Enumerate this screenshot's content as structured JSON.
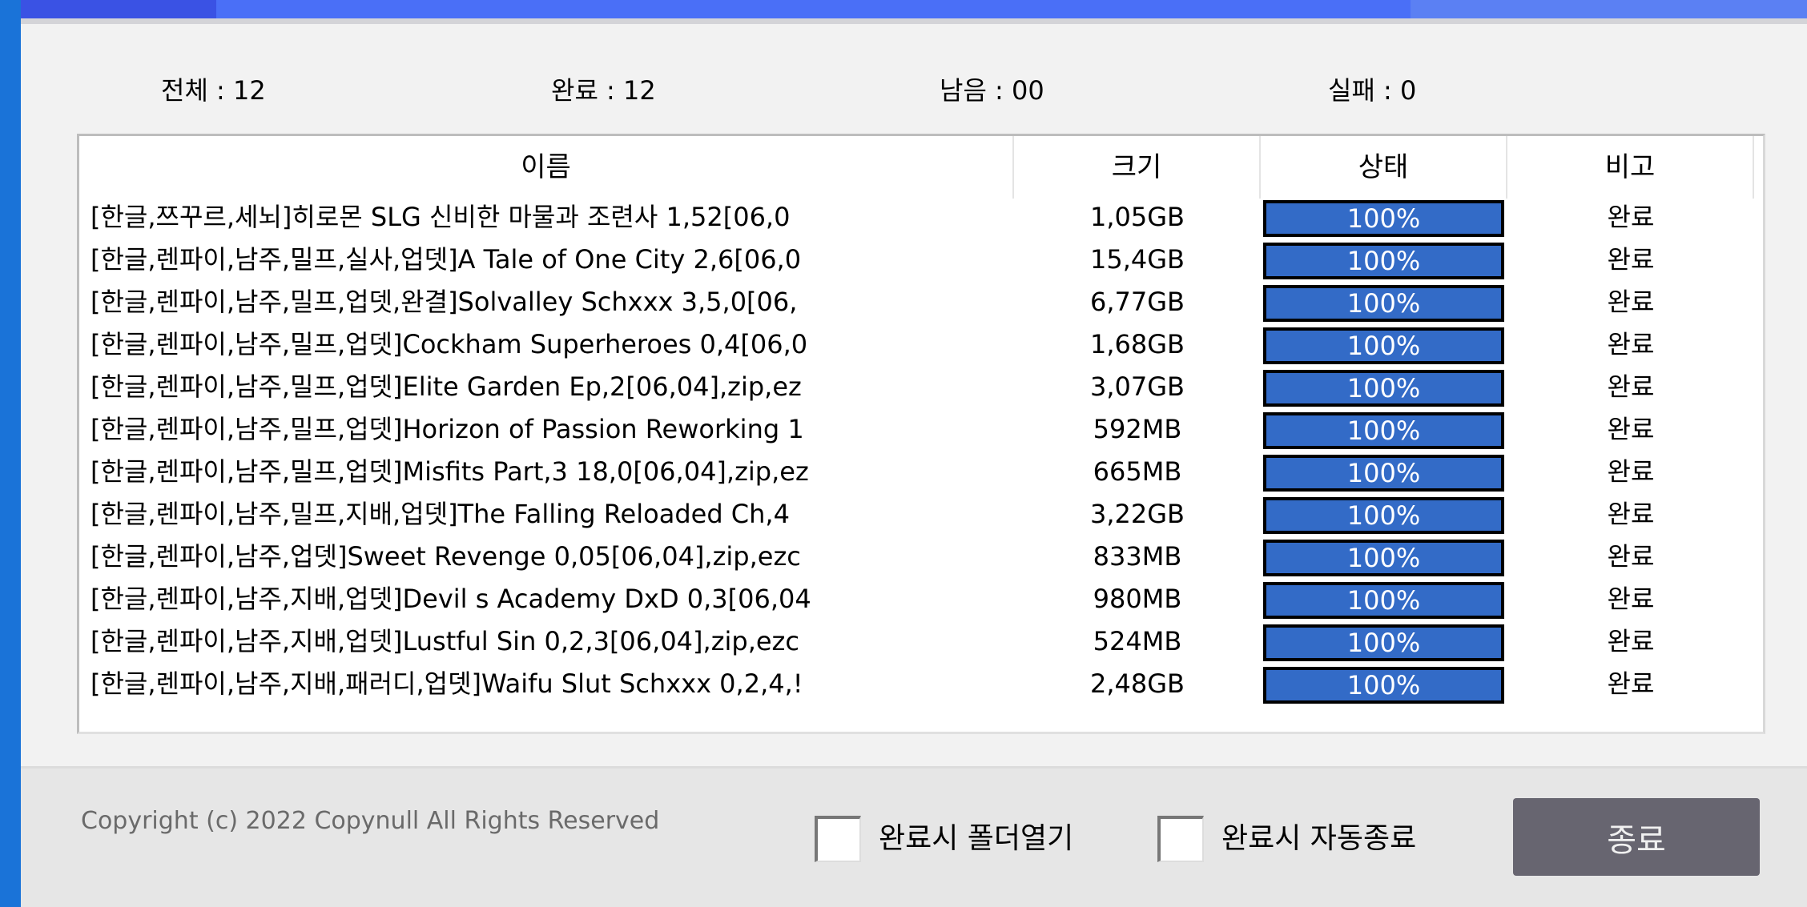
{
  "colors": {
    "titlebar": "#4a6ff7",
    "progress_fill": "#336bc7",
    "quit_button": "#676570"
  },
  "stats": [
    {
      "label": "전체 : 12"
    },
    {
      "label": "완료 : 12"
    },
    {
      "label": "남음 : 00"
    },
    {
      "label": "실패 : 0"
    }
  ],
  "list": {
    "columns": [
      "이름",
      "크기",
      "상태",
      "비고"
    ],
    "rows": [
      {
        "name": "[한글,쯔꾸르,세뇌]히로몬 SLG 신비한 마물과 조련사 1,52[06,0",
        "size": "1,05GB",
        "progress": 100,
        "status": "100%",
        "note": "완료"
      },
      {
        "name": "[한글,렌파이,남주,밀프,실사,업뎃]A Tale of One City 2,6[06,0",
        "size": "15,4GB",
        "progress": 100,
        "status": "100%",
        "note": "완료"
      },
      {
        "name": "[한글,렌파이,남주,밀프,업뎃,완결]Solvalley Schxxx 3,5,0[06,",
        "size": "6,77GB",
        "progress": 100,
        "status": "100%",
        "note": "완료"
      },
      {
        "name": "[한글,렌파이,남주,밀프,업뎃]Cockham Superheroes 0,4[06,0",
        "size": "1,68GB",
        "progress": 100,
        "status": "100%",
        "note": "완료"
      },
      {
        "name": "[한글,렌파이,남주,밀프,업뎃]Elite Garden Ep,2[06,04],zip,ez",
        "size": "3,07GB",
        "progress": 100,
        "status": "100%",
        "note": "완료"
      },
      {
        "name": "[한글,렌파이,남주,밀프,업뎃]Horizon of Passion Reworking 1",
        "size": "592MB",
        "progress": 100,
        "status": "100%",
        "note": "완료"
      },
      {
        "name": "[한글,렌파이,남주,밀프,업뎃]Misfits Part,3 18,0[06,04],zip,ez",
        "size": "665MB",
        "progress": 100,
        "status": "100%",
        "note": "완료"
      },
      {
        "name": "[한글,렌파이,남주,밀프,지배,업뎃]The Falling Reloaded Ch,4",
        "size": "3,22GB",
        "progress": 100,
        "status": "100%",
        "note": "완료"
      },
      {
        "name": "[한글,렌파이,남주,업뎃]Sweet Revenge 0,05[06,04],zip,ezc",
        "size": "833MB",
        "progress": 100,
        "status": "100%",
        "note": "완료"
      },
      {
        "name": "[한글,렌파이,남주,지배,업뎃]Devil s Academy DxD 0,3[06,04",
        "size": "980MB",
        "progress": 100,
        "status": "100%",
        "note": "완료"
      },
      {
        "name": "[한글,렌파이,남주,지배,업뎃]Lustful Sin 0,2,3[06,04],zip,ezc",
        "size": "524MB",
        "progress": 100,
        "status": "100%",
        "note": "완료"
      },
      {
        "name": "[한글,렌파이,남주,지배,패러디,업뎃]Waifu Slut Schxxx 0,2,4,!",
        "size": "2,48GB",
        "progress": 100,
        "status": "100%",
        "note": "완료"
      }
    ]
  },
  "footer": {
    "copyright": "Copyright (c) 2022 Copynull All Rights Reserved",
    "open_folder_label": "완료시 폴더열기",
    "open_folder_checked": false,
    "auto_exit_label": "완료시 자동종료",
    "auto_exit_checked": false,
    "quit_label": "종료"
  }
}
